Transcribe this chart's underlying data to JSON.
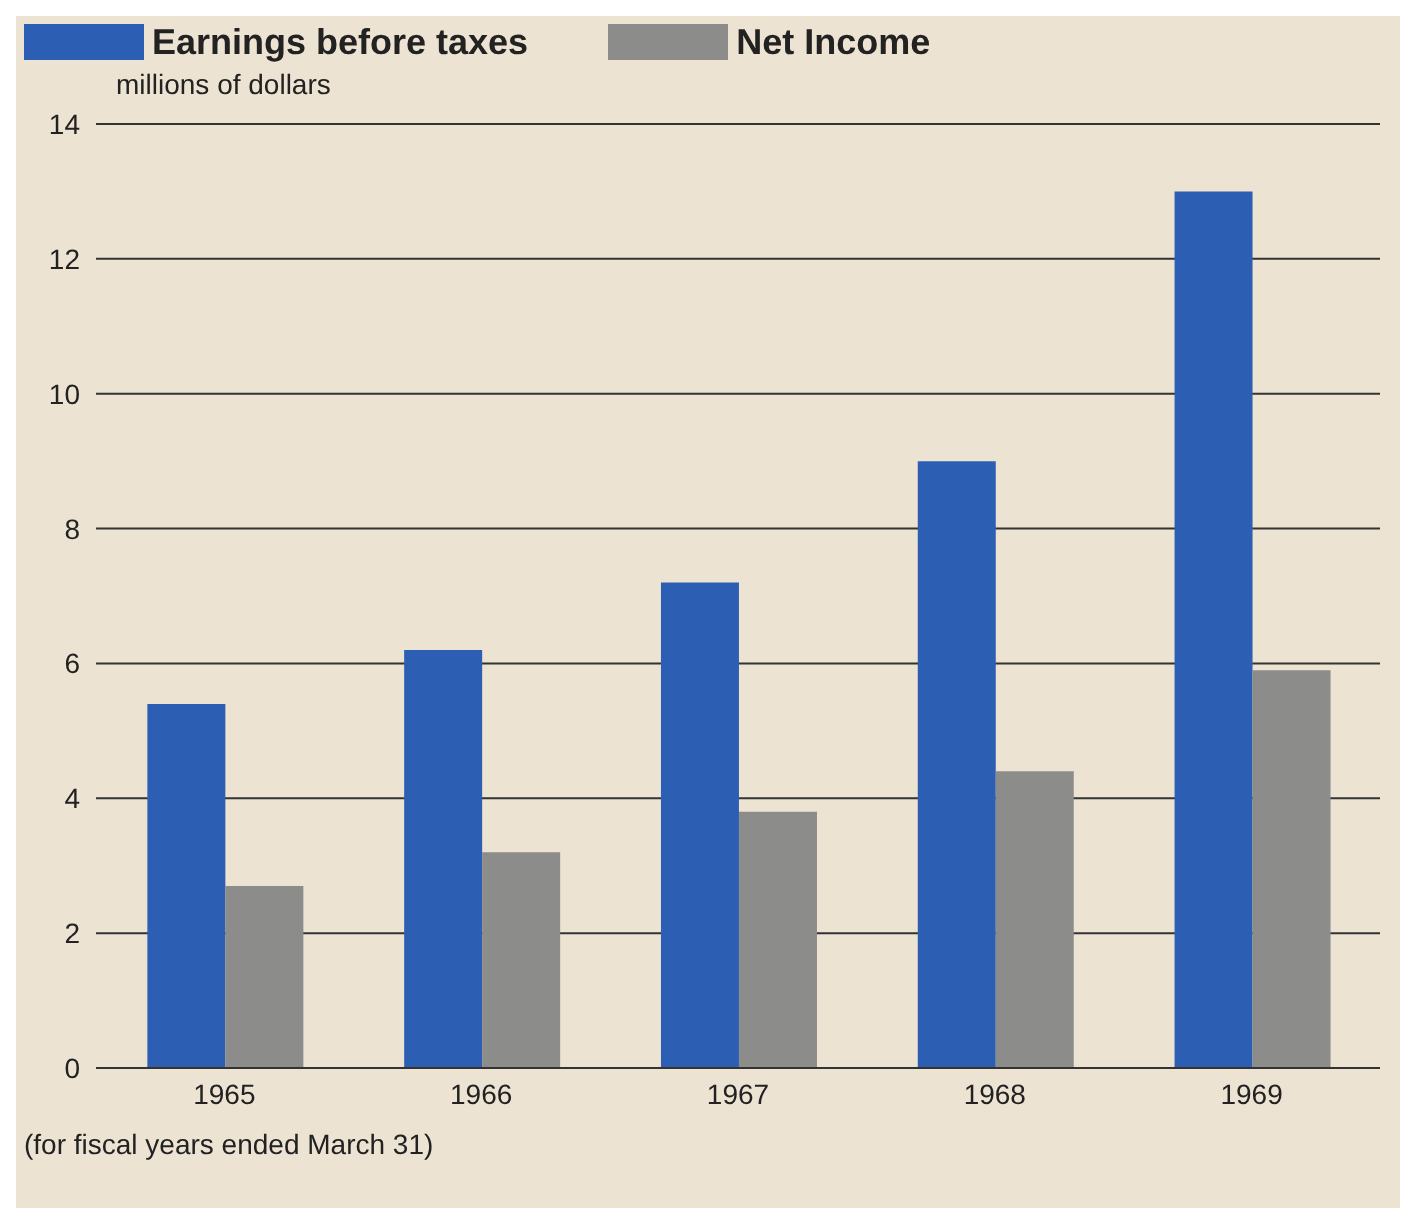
{
  "chart_data": {
    "type": "bar",
    "ylabel": "millions of dollars",
    "categories": [
      "1965",
      "1966",
      "1967",
      "1968",
      "1969"
    ],
    "series": [
      {
        "name": "Earnings before taxes",
        "color": "#2c5fb3",
        "values": [
          5.4,
          6.2,
          7.2,
          9.0,
          13.0
        ]
      },
      {
        "name": "Net Income",
        "color": "#8c8c8a",
        "values": [
          2.7,
          3.2,
          3.8,
          4.4,
          5.9
        ]
      }
    ],
    "ylim": [
      0,
      14
    ],
    "yticks": [
      0,
      2,
      4,
      6,
      8,
      10,
      12,
      14
    ],
    "grid": "y",
    "legend": "top left",
    "annotations": [
      "(for fiscal years ended March 31)"
    ]
  }
}
